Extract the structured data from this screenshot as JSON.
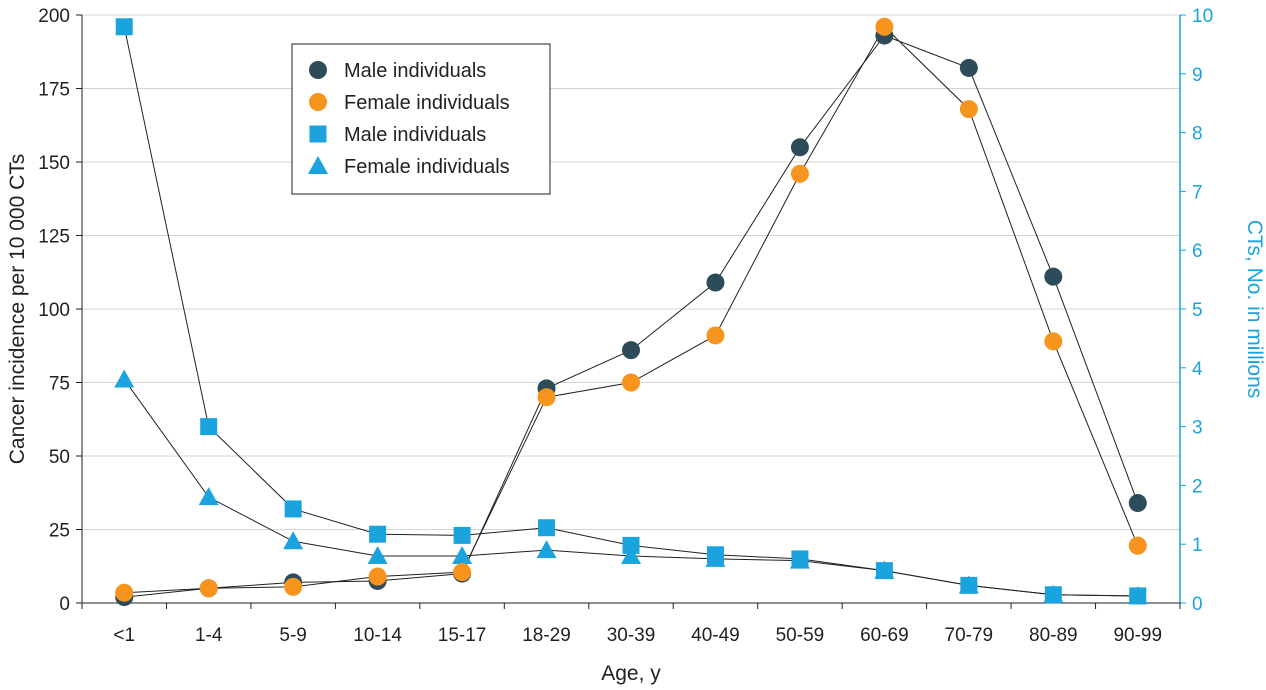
{
  "chart_data": {
    "type": "line",
    "title": "",
    "xlabel": "Age, y",
    "ylabel": "Cancer incidence per 10 000 CTs",
    "y2label": "CTs, No. in millions",
    "categories": [
      "<1",
      "1-4",
      "5-9",
      "10-14",
      "15-17",
      "18-29",
      "30-39",
      "40-49",
      "50-59",
      "60-69",
      "70-79",
      "80-89",
      "90-99"
    ],
    "ylim": [
      0,
      200
    ],
    "y2lim": [
      0,
      10
    ],
    "yticks": [
      "0",
      "25",
      "50",
      "75",
      "100",
      "125",
      "150",
      "175",
      "200"
    ],
    "y2ticks": [
      "0",
      "1",
      "2",
      "3",
      "4",
      "5",
      "6",
      "7",
      "8",
      "9",
      "10"
    ],
    "grid": true,
    "legend_position": "top-left",
    "series": [
      {
        "name": "Male individuals",
        "axis": "left",
        "marker": "circle",
        "color": "#2e4b5a",
        "values": [
          2,
          5,
          7,
          7.5,
          10,
          73,
          86,
          109,
          155,
          193,
          182,
          111,
          34
        ]
      },
      {
        "name": "Female individuals",
        "axis": "left",
        "marker": "circle",
        "color": "#f7941d",
        "values": [
          3.5,
          5,
          5.5,
          9,
          10.5,
          70,
          75,
          91,
          146,
          196,
          168,
          89,
          19.5
        ]
      },
      {
        "name": "Male individuals",
        "axis": "right",
        "marker": "square",
        "color": "#1aa3dc",
        "values": [
          9.8,
          3.0,
          1.6,
          1.17,
          1.15,
          1.28,
          0.98,
          0.82,
          0.75,
          0.55,
          0.3,
          0.14,
          0.12
        ]
      },
      {
        "name": "Female individuals",
        "axis": "right",
        "marker": "triangle",
        "color": "#1aa3dc",
        "values": [
          3.8,
          1.8,
          1.05,
          0.8,
          0.8,
          0.9,
          0.8,
          0.75,
          0.72,
          0.55,
          0.3,
          0.14,
          0.12
        ]
      }
    ]
  }
}
